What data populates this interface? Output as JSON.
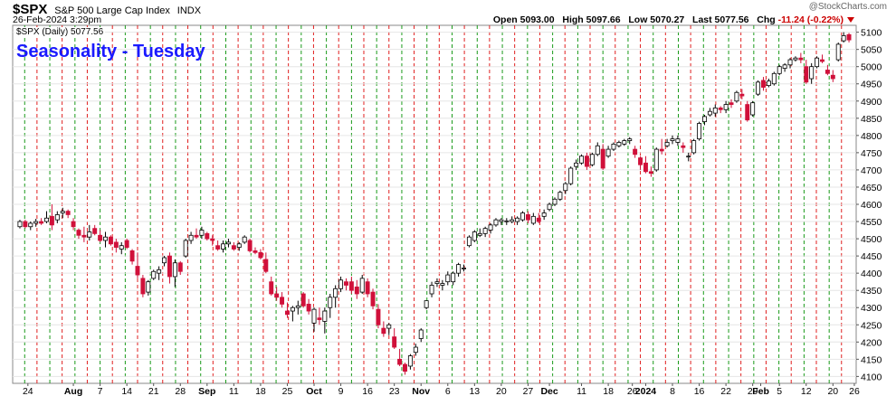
{
  "header": {
    "symbol": "$SPX",
    "name": "S&P 500 Large Cap Index",
    "exchange": "INDX",
    "date": "26-Feb-2024 3:29pm",
    "open_label": "Open",
    "open": "5093.00",
    "high_label": "High",
    "high": "5097.66",
    "low_label": "Low",
    "low": "5070.27",
    "last_label": "Last",
    "last": "5077.56",
    "chg_label": "Chg",
    "chg": "-11.24 (-0.22%)",
    "brand": "@StockCharts.com",
    "legend": "$SPX (Daily) 5077.56"
  },
  "chart_data": {
    "type": "candlestick",
    "title": "Seasonality - Tuesday",
    "ylim": [
      4080,
      5120
    ],
    "y_ticks": [
      4100,
      4150,
      4200,
      4250,
      4300,
      4350,
      4400,
      4450,
      4500,
      4550,
      4600,
      4650,
      4700,
      4750,
      4800,
      4850,
      4900,
      4950,
      5000,
      5050,
      5100
    ],
    "x_tick_labels": [
      "24",
      "Aug",
      "7",
      "14",
      "21",
      "28",
      "Sep",
      "11",
      "18",
      "25",
      "Oct",
      "9",
      "16",
      "23",
      "Nov",
      "6",
      "13",
      "20",
      "27",
      "Dec",
      "11",
      "18",
      "26",
      "2024",
      "8",
      "16",
      "22",
      "29",
      "Feb",
      "5",
      "12",
      "20",
      "26"
    ],
    "x_tick_positions": [
      1.5,
      10,
      15,
      20,
      25,
      30,
      35,
      40,
      45,
      50,
      55,
      60,
      65,
      70,
      75,
      80,
      85,
      90,
      95,
      99,
      105,
      110,
      114.5,
      117,
      122,
      127,
      132,
      137,
      138.5,
      142,
      147,
      152,
      156
    ],
    "vertical_line_colors": {
      "red": "#e02020",
      "green": "#1a9a1a"
    },
    "up_color": "#ffffff",
    "down_color": "#d0103a",
    "candles": [
      {
        "o": 4535,
        "h": 4555,
        "l": 4530,
        "c": 4550
      },
      {
        "o": 4550,
        "h": 4555,
        "l": 4530,
        "c": 4535
      },
      {
        "o": 4535,
        "h": 4550,
        "l": 4525,
        "c": 4545
      },
      {
        "o": 4545,
        "h": 4558,
        "l": 4535,
        "c": 4550
      },
      {
        "o": 4550,
        "h": 4560,
        "l": 4540,
        "c": 4545
      },
      {
        "o": 4550,
        "h": 4580,
        "l": 4545,
        "c": 4560
      },
      {
        "o": 4565,
        "h": 4600,
        "l": 4525,
        "c": 4540
      },
      {
        "o": 4555,
        "h": 4580,
        "l": 4545,
        "c": 4570
      },
      {
        "o": 4575,
        "h": 4590,
        "l": 4560,
        "c": 4580
      },
      {
        "o": 4580,
        "h": 4585,
        "l": 4560,
        "c": 4570
      },
      {
        "o": 4550,
        "h": 4560,
        "l": 4525,
        "c": 4535
      },
      {
        "o": 4525,
        "h": 4530,
        "l": 4500,
        "c": 4510
      },
      {
        "o": 4510,
        "h": 4535,
        "l": 4490,
        "c": 4505
      },
      {
        "o": 4505,
        "h": 4540,
        "l": 4495,
        "c": 4520
      },
      {
        "o": 4530,
        "h": 4540,
        "l": 4510,
        "c": 4515
      },
      {
        "o": 4510,
        "h": 4525,
        "l": 4490,
        "c": 4495
      },
      {
        "o": 4495,
        "h": 4520,
        "l": 4475,
        "c": 4505
      },
      {
        "o": 4505,
        "h": 4510,
        "l": 4480,
        "c": 4485
      },
      {
        "o": 4490,
        "h": 4500,
        "l": 4460,
        "c": 4475
      },
      {
        "o": 4470,
        "h": 4490,
        "l": 4455,
        "c": 4480
      },
      {
        "o": 4495,
        "h": 4500,
        "l": 4470,
        "c": 4475
      },
      {
        "o": 4465,
        "h": 4470,
        "l": 4425,
        "c": 4435
      },
      {
        "o": 4420,
        "h": 4460,
        "l": 4385,
        "c": 4395
      },
      {
        "o": 4385,
        "h": 4395,
        "l": 4330,
        "c": 4340
      },
      {
        "o": 4345,
        "h": 4380,
        "l": 4335,
        "c": 4375
      },
      {
        "o": 4385,
        "h": 4410,
        "l": 4380,
        "c": 4405
      },
      {
        "o": 4400,
        "h": 4420,
        "l": 4380,
        "c": 4410
      },
      {
        "o": 4430,
        "h": 4450,
        "l": 4420,
        "c": 4445
      },
      {
        "o": 4450,
        "h": 4460,
        "l": 4370,
        "c": 4390
      },
      {
        "o": 4390,
        "h": 4440,
        "l": 4360,
        "c": 4430
      },
      {
        "o": 4430,
        "h": 4435,
        "l": 4395,
        "c": 4405
      },
      {
        "o": 4450,
        "h": 4500,
        "l": 4445,
        "c": 4495
      },
      {
        "o": 4495,
        "h": 4520,
        "l": 4485,
        "c": 4510
      },
      {
        "o": 4510,
        "h": 4530,
        "l": 4500,
        "c": 4505
      },
      {
        "o": 4510,
        "h": 4535,
        "l": 4500,
        "c": 4525
      },
      {
        "o": 4515,
        "h": 4520,
        "l": 4495,
        "c": 4500
      },
      {
        "o": 4500,
        "h": 4510,
        "l": 4480,
        "c": 4495
      },
      {
        "o": 4480,
        "h": 4495,
        "l": 4465,
        "c": 4470
      },
      {
        "o": 4470,
        "h": 4495,
        "l": 4460,
        "c": 4485
      },
      {
        "o": 4485,
        "h": 4500,
        "l": 4475,
        "c": 4490
      },
      {
        "o": 4480,
        "h": 4490,
        "l": 4465,
        "c": 4470
      },
      {
        "o": 4475,
        "h": 4490,
        "l": 4465,
        "c": 4485
      },
      {
        "o": 4490,
        "h": 4510,
        "l": 4485,
        "c": 4505
      },
      {
        "o": 4495,
        "h": 4500,
        "l": 4460,
        "c": 4465
      },
      {
        "o": 4465,
        "h": 4475,
        "l": 4455,
        "c": 4460
      },
      {
        "o": 4460,
        "h": 4470,
        "l": 4440,
        "c": 4445
      },
      {
        "o": 4440,
        "h": 4460,
        "l": 4400,
        "c": 4405
      },
      {
        "o": 4375,
        "h": 4390,
        "l": 4335,
        "c": 4340
      },
      {
        "o": 4340,
        "h": 4360,
        "l": 4320,
        "c": 4330
      },
      {
        "o": 4330,
        "h": 4345,
        "l": 4300,
        "c": 4310
      },
      {
        "o": 4290,
        "h": 4315,
        "l": 4270,
        "c": 4280
      },
      {
        "o": 4290,
        "h": 4305,
        "l": 4260,
        "c": 4300
      },
      {
        "o": 4300,
        "h": 4320,
        "l": 4280,
        "c": 4305
      },
      {
        "o": 4340,
        "h": 4345,
        "l": 4300,
        "c": 4305
      },
      {
        "o": 4310,
        "h": 4325,
        "l": 4280,
        "c": 4290
      },
      {
        "o": 4255,
        "h": 4300,
        "l": 4230,
        "c": 4295
      },
      {
        "o": 4270,
        "h": 4300,
        "l": 4250,
        "c": 4265
      },
      {
        "o": 4260,
        "h": 4300,
        "l": 4225,
        "c": 4290
      },
      {
        "o": 4300,
        "h": 4340,
        "l": 4270,
        "c": 4330
      },
      {
        "o": 4330,
        "h": 4365,
        "l": 4300,
        "c": 4355
      },
      {
        "o": 4355,
        "h": 4390,
        "l": 4345,
        "c": 4380
      },
      {
        "o": 4375,
        "h": 4385,
        "l": 4350,
        "c": 4365
      },
      {
        "o": 4375,
        "h": 4390,
        "l": 4340,
        "c": 4350
      },
      {
        "o": 4360,
        "h": 4380,
        "l": 4325,
        "c": 4340
      },
      {
        "o": 4345,
        "h": 4395,
        "l": 4340,
        "c": 4385
      },
      {
        "o": 4375,
        "h": 4385,
        "l": 4330,
        "c": 4340
      },
      {
        "o": 4345,
        "h": 4355,
        "l": 4295,
        "c": 4305
      },
      {
        "o": 4295,
        "h": 4310,
        "l": 4240,
        "c": 4250
      },
      {
        "o": 4240,
        "h": 4260,
        "l": 4215,
        "c": 4225
      },
      {
        "o": 4240,
        "h": 4255,
        "l": 4220,
        "c": 4250
      },
      {
        "o": 4215,
        "h": 4240,
        "l": 4180,
        "c": 4185
      },
      {
        "o": 4150,
        "h": 4180,
        "l": 4130,
        "c": 4135
      },
      {
        "o": 4135,
        "h": 4140,
        "l": 4105,
        "c": 4115
      },
      {
        "o": 4130,
        "h": 4165,
        "l": 4120,
        "c": 4160
      },
      {
        "o": 4170,
        "h": 4195,
        "l": 4160,
        "c": 4185
      },
      {
        "o": 4210,
        "h": 4240,
        "l": 4200,
        "c": 4235
      },
      {
        "o": 4300,
        "h": 4320,
        "l": 4295,
        "c": 4320
      },
      {
        "o": 4340,
        "h": 4375,
        "l": 4330,
        "c": 4365
      },
      {
        "o": 4370,
        "h": 4385,
        "l": 4360,
        "c": 4375
      },
      {
        "o": 4365,
        "h": 4380,
        "l": 4350,
        "c": 4370
      },
      {
        "o": 4375,
        "h": 4405,
        "l": 4365,
        "c": 4395
      },
      {
        "o": 4375,
        "h": 4405,
        "l": 4365,
        "c": 4400
      },
      {
        "o": 4400,
        "h": 4430,
        "l": 4390,
        "c": 4425
      },
      {
        "o": 4415,
        "h": 4425,
        "l": 4405,
        "c": 4415
      },
      {
        "o": 4480,
        "h": 4510,
        "l": 4475,
        "c": 4505
      },
      {
        "o": 4495,
        "h": 4525,
        "l": 4490,
        "c": 4520
      },
      {
        "o": 4510,
        "h": 4530,
        "l": 4505,
        "c": 4515
      },
      {
        "o": 4515,
        "h": 4535,
        "l": 4505,
        "c": 4530
      },
      {
        "o": 4525,
        "h": 4545,
        "l": 4515,
        "c": 4540
      },
      {
        "o": 4540,
        "h": 4560,
        "l": 4535,
        "c": 4555
      },
      {
        "o": 4550,
        "h": 4560,
        "l": 4540,
        "c": 4555
      },
      {
        "o": 4550,
        "h": 4560,
        "l": 4540,
        "c": 4552
      },
      {
        "o": 4550,
        "h": 4565,
        "l": 4545,
        "c": 4555
      },
      {
        "o": 4550,
        "h": 4565,
        "l": 4540,
        "c": 4560
      },
      {
        "o": 4555,
        "h": 4580,
        "l": 4550,
        "c": 4575
      },
      {
        "o": 4570,
        "h": 4580,
        "l": 4545,
        "c": 4555
      },
      {
        "o": 4545,
        "h": 4575,
        "l": 4540,
        "c": 4565
      },
      {
        "o": 4560,
        "h": 4575,
        "l": 4545,
        "c": 4550
      },
      {
        "o": 4565,
        "h": 4585,
        "l": 4555,
        "c": 4575
      },
      {
        "o": 4585,
        "h": 4605,
        "l": 4580,
        "c": 4600
      },
      {
        "o": 4600,
        "h": 4620,
        "l": 4595,
        "c": 4615
      },
      {
        "o": 4615,
        "h": 4640,
        "l": 4610,
        "c": 4635
      },
      {
        "o": 4640,
        "h": 4665,
        "l": 4630,
        "c": 4660
      },
      {
        "o": 4660,
        "h": 4710,
        "l": 4655,
        "c": 4705
      },
      {
        "o": 4710,
        "h": 4730,
        "l": 4700,
        "c": 4720
      },
      {
        "o": 4720,
        "h": 4745,
        "l": 4715,
        "c": 4740
      },
      {
        "o": 4740,
        "h": 4750,
        "l": 4700,
        "c": 4710
      },
      {
        "o": 4715,
        "h": 4750,
        "l": 4710,
        "c": 4745
      },
      {
        "o": 4745,
        "h": 4780,
        "l": 4740,
        "c": 4770
      },
      {
        "o": 4760,
        "h": 4775,
        "l": 4700,
        "c": 4705
      },
      {
        "o": 4740,
        "h": 4770,
        "l": 4735,
        "c": 4760
      },
      {
        "o": 4760,
        "h": 4780,
        "l": 4755,
        "c": 4775
      },
      {
        "o": 4770,
        "h": 4785,
        "l": 4765,
        "c": 4780
      },
      {
        "o": 4775,
        "h": 4790,
        "l": 4770,
        "c": 4785
      },
      {
        "o": 4785,
        "h": 4795,
        "l": 4775,
        "c": 4790
      },
      {
        "o": 4760,
        "h": 4770,
        "l": 4735,
        "c": 4745
      },
      {
        "o": 4735,
        "h": 4740,
        "l": 4700,
        "c": 4715
      },
      {
        "o": 4720,
        "h": 4740,
        "l": 4690,
        "c": 4695
      },
      {
        "o": 4695,
        "h": 4710,
        "l": 4680,
        "c": 4690
      },
      {
        "o": 4700,
        "h": 4765,
        "l": 4695,
        "c": 4760
      },
      {
        "o": 4760,
        "h": 4790,
        "l": 4745,
        "c": 4755
      },
      {
        "o": 4770,
        "h": 4790,
        "l": 4765,
        "c": 4780
      },
      {
        "o": 4785,
        "h": 4800,
        "l": 4775,
        "c": 4790
      },
      {
        "o": 4780,
        "h": 4800,
        "l": 4770,
        "c": 4790
      },
      {
        "o": 4770,
        "h": 4780,
        "l": 4750,
        "c": 4765
      },
      {
        "o": 4740,
        "h": 4750,
        "l": 4725,
        "c": 4740
      },
      {
        "o": 4750,
        "h": 4790,
        "l": 4745,
        "c": 4785
      },
      {
        "o": 4790,
        "h": 4840,
        "l": 4785,
        "c": 4835
      },
      {
        "o": 4840,
        "h": 4860,
        "l": 4830,
        "c": 4855
      },
      {
        "o": 4860,
        "h": 4880,
        "l": 4855,
        "c": 4870
      },
      {
        "o": 4865,
        "h": 4890,
        "l": 4855,
        "c": 4880
      },
      {
        "o": 4880,
        "h": 4885,
        "l": 4865,
        "c": 4875
      },
      {
        "o": 4875,
        "h": 4900,
        "l": 4865,
        "c": 4890
      },
      {
        "o": 4895,
        "h": 4905,
        "l": 4880,
        "c": 4890
      },
      {
        "o": 4900,
        "h": 4930,
        "l": 4895,
        "c": 4925
      },
      {
        "o": 4920,
        "h": 4935,
        "l": 4905,
        "c": 4915
      },
      {
        "o": 4890,
        "h": 4900,
        "l": 4840,
        "c": 4845
      },
      {
        "o": 4860,
        "h": 4900,
        "l": 4855,
        "c": 4895
      },
      {
        "o": 4920,
        "h": 4960,
        "l": 4915,
        "c": 4955
      },
      {
        "o": 4960,
        "h": 4970,
        "l": 4930,
        "c": 4940
      },
      {
        "o": 4945,
        "h": 4965,
        "l": 4940,
        "c": 4958
      },
      {
        "o": 4950,
        "h": 4985,
        "l": 4945,
        "c": 4980
      },
      {
        "o": 4980,
        "h": 5005,
        "l": 4975,
        "c": 5000
      },
      {
        "o": 4995,
        "h": 5010,
        "l": 4985,
        "c": 5005
      },
      {
        "o": 5005,
        "h": 5025,
        "l": 4995,
        "c": 5020
      },
      {
        "o": 5020,
        "h": 5030,
        "l": 5015,
        "c": 5025
      },
      {
        "o": 5025,
        "h": 5040,
        "l": 5010,
        "c": 5020
      },
      {
        "o": 5000,
        "h": 5020,
        "l": 4950,
        "c": 4955
      },
      {
        "o": 4965,
        "h": 5010,
        "l": 4950,
        "c": 5000
      },
      {
        "o": 5000,
        "h": 5030,
        "l": 4995,
        "c": 5025
      },
      {
        "o": 5020,
        "h": 5035,
        "l": 5010,
        "c": 5015
      },
      {
        "o": 4990,
        "h": 5005,
        "l": 4975,
        "c": 4980
      },
      {
        "o": 4975,
        "h": 4990,
        "l": 4955,
        "c": 4965
      },
      {
        "o": 5020,
        "h": 5070,
        "l": 5015,
        "c": 5065
      },
      {
        "o": 5075,
        "h": 5100,
        "l": 5070,
        "c": 5090
      },
      {
        "o": 5093,
        "h": 5097.66,
        "l": 5070.27,
        "c": 5077.56
      }
    ]
  }
}
